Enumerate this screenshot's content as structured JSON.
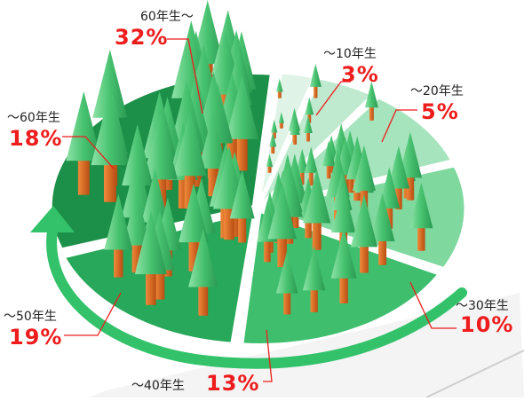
{
  "chart_data": {
    "type": "pie",
    "categories": [
      "～10年生",
      "～20年生",
      "～30年生",
      "～40年生",
      "～50年生",
      "～60年生",
      "60年生～"
    ],
    "values": [
      3,
      5,
      10,
      13,
      19,
      18,
      32
    ],
    "value_labels": [
      "3%",
      "5%",
      "10%",
      "13%",
      "19%",
      "18%",
      "32%"
    ],
    "colors": [
      "#dff4e6",
      "#bfead0",
      "#a6e4be",
      "#7fd89e",
      "#3fbf6e",
      "#27a85a",
      "#1c8f48"
    ],
    "label_color": "#ee1c1c",
    "legend": "none",
    "title": ""
  }
}
